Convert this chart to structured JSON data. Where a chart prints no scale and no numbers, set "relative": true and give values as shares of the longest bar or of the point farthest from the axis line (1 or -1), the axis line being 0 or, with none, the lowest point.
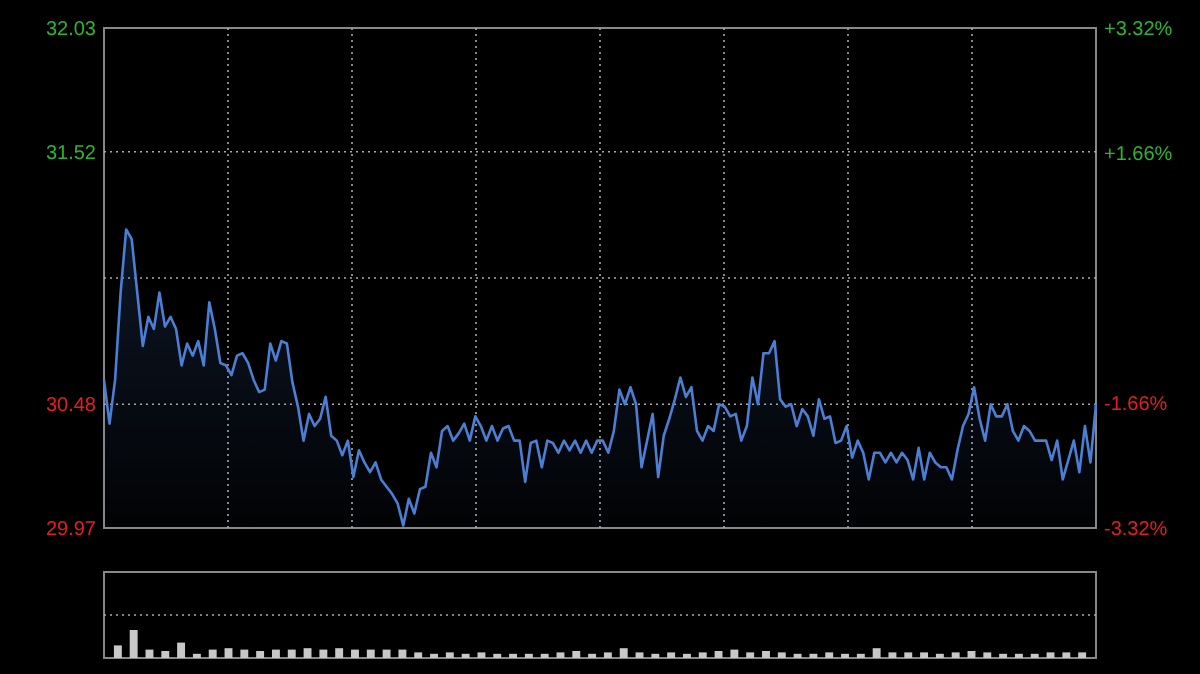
{
  "chart_data": [
    {
      "type": "area",
      "categories": [
        null,
        null,
        null,
        null,
        null,
        null,
        null,
        null,
        null,
        null,
        null,
        null,
        null,
        null,
        null,
        null,
        null,
        null,
        null,
        null,
        null,
        null,
        null,
        null,
        null,
        null,
        null,
        null,
        null,
        null,
        null,
        null,
        null,
        null,
        null,
        null,
        null,
        null,
        null,
        null,
        null,
        null,
        null,
        null,
        null,
        null,
        null,
        null,
        null,
        null,
        null,
        null,
        null,
        null,
        null,
        null,
        null,
        null,
        null,
        null,
        null,
        null,
        null,
        null,
        null,
        null,
        null,
        null,
        null,
        null,
        null,
        null,
        null,
        null,
        null,
        null,
        null,
        null,
        null,
        null,
        null,
        null,
        null,
        null,
        null,
        null,
        null,
        null,
        null,
        null,
        null,
        null,
        null,
        null,
        null,
        null,
        null,
        null,
        null,
        null,
        null,
        null,
        null,
        null,
        null,
        null,
        null,
        null,
        null,
        null,
        null,
        null,
        null,
        null,
        null,
        null,
        null,
        null,
        null,
        null,
        null,
        null,
        null,
        null,
        null,
        null,
        null,
        null,
        null,
        null,
        null,
        null,
        null,
        null,
        null,
        null,
        null,
        null,
        null,
        null,
        null,
        null,
        null,
        null,
        null,
        null,
        null,
        null,
        null,
        null,
        null,
        null,
        null,
        null,
        null,
        null,
        null,
        null,
        null,
        null,
        null,
        null,
        null,
        null,
        null,
        null,
        null,
        null,
        null,
        null,
        null,
        null,
        null,
        null,
        null,
        null,
        null,
        null,
        null,
        null
      ],
      "series": [
        {
          "color": "#4a7fd4",
          "values": [
            30.58,
            30.4,
            30.58,
            30.94,
            31.2,
            31.16,
            30.94,
            30.72,
            30.84,
            30.79,
            30.94,
            30.8,
            30.84,
            30.79,
            30.64,
            30.73,
            30.68,
            30.74,
            30.64,
            30.9,
            30.79,
            30.65,
            30.64,
            30.6,
            30.68,
            30.69,
            30.65,
            30.58,
            30.53,
            30.54,
            30.73,
            30.66,
            30.74,
            30.73,
            30.57,
            30.47,
            30.33,
            30.44,
            30.39,
            30.42,
            30.51,
            30.35,
            30.33,
            30.27,
            30.33,
            30.18,
            30.29,
            30.24,
            30.2,
            30.24,
            30.17,
            30.14,
            30.11,
            30.07,
            29.98,
            30.09,
            30.03,
            30.13,
            30.14,
            30.28,
            30.22,
            30.37,
            30.39,
            30.33,
            30.36,
            30.4,
            30.33,
            30.43,
            30.39,
            30.33,
            30.39,
            30.33,
            30.38,
            30.39,
            30.33,
            30.33,
            30.16,
            30.32,
            30.33,
            30.22,
            30.33,
            30.32,
            30.28,
            30.33,
            30.29,
            30.33,
            30.28,
            30.33,
            30.28,
            30.33,
            30.33,
            30.28,
            30.37,
            30.54,
            30.48,
            30.55,
            30.48,
            30.22,
            30.33,
            30.44,
            30.18,
            30.35,
            30.42,
            30.5,
            30.59,
            30.51,
            30.55,
            30.37,
            30.33,
            30.39,
            30.37,
            30.48,
            30.47,
            30.43,
            30.44,
            30.33,
            30.39,
            30.59,
            30.48,
            30.69,
            30.69,
            30.74,
            30.5,
            30.47,
            30.48,
            30.39,
            30.46,
            30.43,
            30.35,
            30.5,
            30.42,
            30.43,
            30.32,
            30.33,
            30.39,
            30.26,
            30.33,
            30.28,
            30.17,
            30.28,
            30.28,
            30.24,
            30.28,
            30.24,
            30.28,
            30.25,
            30.17,
            30.3,
            30.17,
            30.28,
            30.24,
            30.22,
            30.22,
            30.17,
            30.29,
            30.39,
            30.44,
            30.55,
            30.42,
            30.33,
            30.48,
            30.43,
            30.43,
            30.48,
            30.37,
            30.33,
            30.39,
            30.37,
            30.33,
            30.33,
            30.33,
            30.25,
            30.33,
            30.17,
            30.25,
            30.33,
            30.2,
            30.39,
            30.24,
            30.48
          ]
        }
      ],
      "ylim": [
        29.97,
        32.03
      ],
      "yticks": [
        29.97,
        30.48,
        {
          "value": 31.0,
          "label": null
        },
        31.52,
        32.03
      ],
      "y2lim": [
        -3.32,
        3.32
      ],
      "y2ticks": [
        {
          "value": -3.32,
          "label": "-3.32%"
        },
        {
          "value": -1.66,
          "label": "-1.66%"
        },
        {
          "value": 0,
          "label": null
        },
        {
          "value": 1.66,
          "label": "+1.66%"
        },
        {
          "value": 3.32,
          "label": "+3.32%"
        }
      ],
      "grid": true
    },
    {
      "type": "bar",
      "relative": true,
      "categories": [
        null,
        null,
        null,
        null,
        null,
        null,
        null,
        null,
        null,
        null,
        null,
        null,
        null,
        null,
        null,
        null,
        null,
        null,
        null,
        null,
        null,
        null,
        null,
        null,
        null,
        null,
        null,
        null,
        null,
        null,
        null,
        null,
        null,
        null,
        null,
        null,
        null,
        null,
        null,
        null,
        null,
        null,
        null,
        null,
        null,
        null,
        null,
        null,
        null,
        null,
        null,
        null,
        null,
        null,
        null,
        null,
        null,
        null,
        null,
        null,
        null,
        null
      ],
      "color": "#c8c8c8",
      "values": [
        0.45,
        1.0,
        0.3,
        0.25,
        0.55,
        0.15,
        0.3,
        0.35,
        0.3,
        0.25,
        0.3,
        0.3,
        0.35,
        0.3,
        0.35,
        0.3,
        0.3,
        0.3,
        0.3,
        0.2,
        0.15,
        0.2,
        0.15,
        0.2,
        0.15,
        0.15,
        0.15,
        0.15,
        0.2,
        0.25,
        0.15,
        0.2,
        0.35,
        0.2,
        0.15,
        0.2,
        0.15,
        0.2,
        0.25,
        0.3,
        0.2,
        0.25,
        0.2,
        0.15,
        0.15,
        0.2,
        0.15,
        0.15,
        0.35,
        0.2,
        0.2,
        0.2,
        0.15,
        0.2,
        0.25,
        0.2,
        0.15,
        0.15,
        0.15,
        0.2,
        0.2,
        0.2
      ]
    }
  ]
}
